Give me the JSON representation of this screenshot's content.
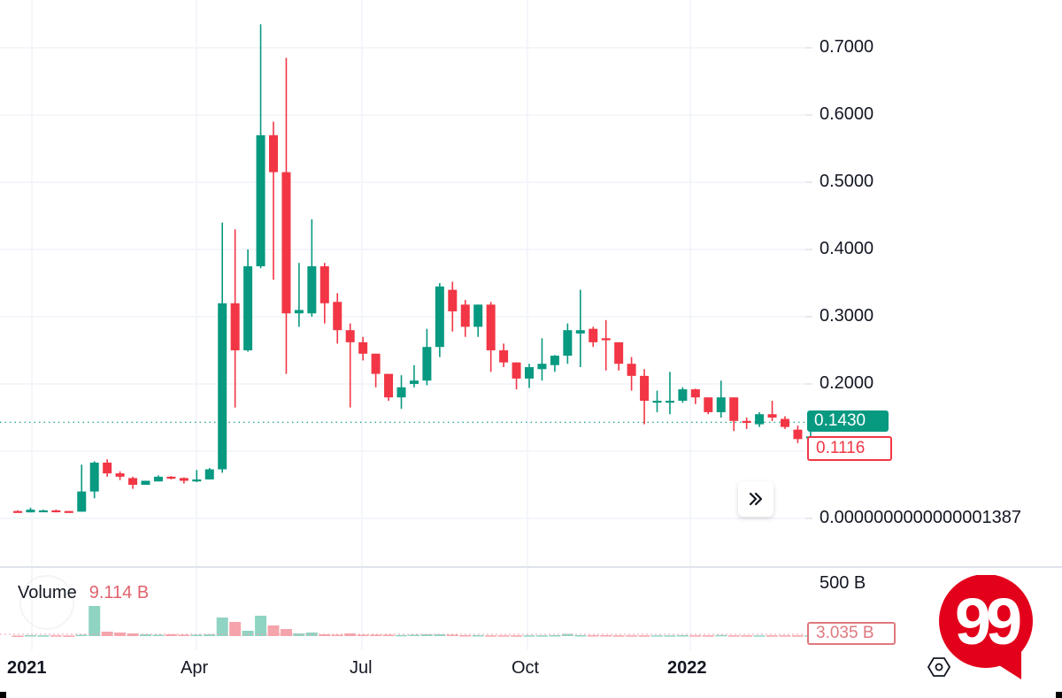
{
  "chart_data": {
    "type": "candlestick",
    "title": "",
    "interval": "weekly",
    "price_axis": {
      "ticks": [
        "0.7000",
        "0.6000",
        "0.5000",
        "0.4000",
        "0.3000",
        "0.2000",
        "0.0000000000000001387"
      ],
      "range": [
        0,
        0.75
      ]
    },
    "time_axis": {
      "ticks": [
        {
          "label": "2021",
          "bold": true
        },
        {
          "label": "Apr",
          "bold": false
        },
        {
          "label": "Jul",
          "bold": false
        },
        {
          "label": "Oct",
          "bold": false
        },
        {
          "label": "2022",
          "bold": true
        }
      ]
    },
    "candles": [
      {
        "o": 0.011,
        "h": 0.012,
        "l": 0.009,
        "c": 0.009
      },
      {
        "o": 0.009,
        "h": 0.016,
        "l": 0.009,
        "c": 0.013
      },
      {
        "o": 0.012,
        "h": 0.013,
        "l": 0.011,
        "c": 0.012
      },
      {
        "o": 0.012,
        "h": 0.013,
        "l": 0.009,
        "c": 0.011
      },
      {
        "o": 0.011,
        "h": 0.011,
        "l": 0.01,
        "c": 0.01
      },
      {
        "o": 0.01,
        "h": 0.08,
        "l": 0.01,
        "c": 0.04
      },
      {
        "o": 0.04,
        "h": 0.085,
        "l": 0.03,
        "c": 0.083
      },
      {
        "o": 0.083,
        "h": 0.088,
        "l": 0.062,
        "c": 0.067
      },
      {
        "o": 0.067,
        "h": 0.07,
        "l": 0.057,
        "c": 0.062
      },
      {
        "o": 0.06,
        "h": 0.062,
        "l": 0.044,
        "c": 0.05
      },
      {
        "o": 0.05,
        "h": 0.056,
        "l": 0.05,
        "c": 0.056
      },
      {
        "o": 0.055,
        "h": 0.064,
        "l": 0.055,
        "c": 0.062
      },
      {
        "o": 0.062,
        "h": 0.063,
        "l": 0.058,
        "c": 0.06
      },
      {
        "o": 0.06,
        "h": 0.061,
        "l": 0.052,
        "c": 0.056
      },
      {
        "o": 0.055,
        "h": 0.072,
        "l": 0.054,
        "c": 0.058
      },
      {
        "o": 0.058,
        "h": 0.075,
        "l": 0.058,
        "c": 0.073
      },
      {
        "o": 0.073,
        "h": 0.44,
        "l": 0.068,
        "c": 0.32
      },
      {
        "o": 0.32,
        "h": 0.43,
        "l": 0.165,
        "c": 0.25
      },
      {
        "o": 0.25,
        "h": 0.4,
        "l": 0.248,
        "c": 0.375
      },
      {
        "o": 0.375,
        "h": 0.735,
        "l": 0.372,
        "c": 0.57
      },
      {
        "o": 0.57,
        "h": 0.59,
        "l": 0.355,
        "c": 0.515
      },
      {
        "o": 0.515,
        "h": 0.685,
        "l": 0.215,
        "c": 0.305
      },
      {
        "o": 0.305,
        "h": 0.38,
        "l": 0.285,
        "c": 0.31
      },
      {
        "o": 0.305,
        "h": 0.445,
        "l": 0.3,
        "c": 0.375
      },
      {
        "o": 0.375,
        "h": 0.38,
        "l": 0.29,
        "c": 0.32
      },
      {
        "o": 0.322,
        "h": 0.335,
        "l": 0.26,
        "c": 0.28
      },
      {
        "o": 0.28,
        "h": 0.29,
        "l": 0.165,
        "c": 0.262
      },
      {
        "o": 0.262,
        "h": 0.27,
        "l": 0.235,
        "c": 0.245
      },
      {
        "o": 0.245,
        "h": 0.245,
        "l": 0.195,
        "c": 0.215
      },
      {
        "o": 0.215,
        "h": 0.215,
        "l": 0.175,
        "c": 0.18
      },
      {
        "o": 0.18,
        "h": 0.213,
        "l": 0.163,
        "c": 0.195
      },
      {
        "o": 0.2,
        "h": 0.228,
        "l": 0.195,
        "c": 0.205
      },
      {
        "o": 0.205,
        "h": 0.282,
        "l": 0.198,
        "c": 0.255
      },
      {
        "o": 0.255,
        "h": 0.35,
        "l": 0.24,
        "c": 0.345
      },
      {
        "o": 0.34,
        "h": 0.352,
        "l": 0.278,
        "c": 0.308
      },
      {
        "o": 0.318,
        "h": 0.325,
        "l": 0.27,
        "c": 0.285
      },
      {
        "o": 0.285,
        "h": 0.318,
        "l": 0.27,
        "c": 0.318
      },
      {
        "o": 0.318,
        "h": 0.322,
        "l": 0.218,
        "c": 0.25
      },
      {
        "o": 0.25,
        "h": 0.26,
        "l": 0.225,
        "c": 0.232
      },
      {
        "o": 0.232,
        "h": 0.232,
        "l": 0.192,
        "c": 0.208
      },
      {
        "o": 0.208,
        "h": 0.23,
        "l": 0.194,
        "c": 0.225
      },
      {
        "o": 0.222,
        "h": 0.268,
        "l": 0.205,
        "c": 0.23
      },
      {
        "o": 0.228,
        "h": 0.243,
        "l": 0.218,
        "c": 0.242
      },
      {
        "o": 0.242,
        "h": 0.29,
        "l": 0.23,
        "c": 0.28
      },
      {
        "o": 0.275,
        "h": 0.34,
        "l": 0.225,
        "c": 0.28
      },
      {
        "o": 0.282,
        "h": 0.285,
        "l": 0.255,
        "c": 0.262
      },
      {
        "o": 0.268,
        "h": 0.295,
        "l": 0.22,
        "c": 0.265
      },
      {
        "o": 0.262,
        "h": 0.262,
        "l": 0.22,
        "c": 0.23
      },
      {
        "o": 0.23,
        "h": 0.24,
        "l": 0.19,
        "c": 0.212
      },
      {
        "o": 0.212,
        "h": 0.222,
        "l": 0.14,
        "c": 0.175
      },
      {
        "o": 0.175,
        "h": 0.19,
        "l": 0.158,
        "c": 0.175
      },
      {
        "o": 0.175,
        "h": 0.218,
        "l": 0.155,
        "c": 0.175
      },
      {
        "o": 0.175,
        "h": 0.195,
        "l": 0.172,
        "c": 0.192
      },
      {
        "o": 0.192,
        "h": 0.193,
        "l": 0.17,
        "c": 0.18
      },
      {
        "o": 0.18,
        "h": 0.18,
        "l": 0.155,
        "c": 0.158
      },
      {
        "o": 0.158,
        "h": 0.205,
        "l": 0.15,
        "c": 0.18
      },
      {
        "o": 0.18,
        "h": 0.18,
        "l": 0.13,
        "c": 0.145
      },
      {
        "o": 0.145,
        "h": 0.15,
        "l": 0.133,
        "c": 0.143
      },
      {
        "o": 0.14,
        "h": 0.158,
        "l": 0.136,
        "c": 0.155
      },
      {
        "o": 0.155,
        "h": 0.175,
        "l": 0.145,
        "c": 0.15
      },
      {
        "o": 0.148,
        "h": 0.152,
        "l": 0.133,
        "c": 0.136
      },
      {
        "o": 0.132,
        "h": 0.138,
        "l": 0.112,
        "c": 0.118
      },
      {
        "o": 0.12,
        "h": 0.138,
        "l": 0.12,
        "c": 0.122
      },
      {
        "o": 0.118,
        "h": 0.12,
        "l": 0.11,
        "c": 0.112
      }
    ],
    "current_price": "0.1430",
    "last_price": "0.1116",
    "volume": {
      "label": "Volume",
      "value": "9.114 B",
      "axis_tick": "500 B",
      "last_value": "3.035 B",
      "bars": [
        0.5,
        1,
        0.8,
        0.8,
        0.6,
        1.5,
        34,
        5,
        4,
        3,
        2,
        1.5,
        2,
        1.5,
        1.5,
        2,
        21,
        16,
        6,
        23,
        12,
        8,
        3,
        4,
        2,
        1.5,
        3,
        1.5,
        1.5,
        1.5,
        1.2,
        1.5,
        2,
        2,
        1.5,
        1,
        1,
        0.8,
        0.8,
        0.8,
        0.8,
        0.8,
        1,
        2.5,
        1,
        1,
        1,
        0.8,
        0.8,
        0.8,
        0.8,
        0.8,
        1,
        0.8,
        0.8,
        1.2,
        0.8,
        0.8,
        0.8,
        0.8,
        0.8,
        0.8,
        0.8,
        0.8
      ]
    }
  },
  "colors": {
    "up": "#089981",
    "down": "#f23645",
    "up_volume": "#8fd3c3",
    "down_volume": "#f5a4ac",
    "grid": "#f0f3fa"
  },
  "ui": {
    "scroll_button_icon": "double-chevron-right-icon",
    "settings_icon": "hexagon-settings-icon",
    "badge_text": "99"
  }
}
